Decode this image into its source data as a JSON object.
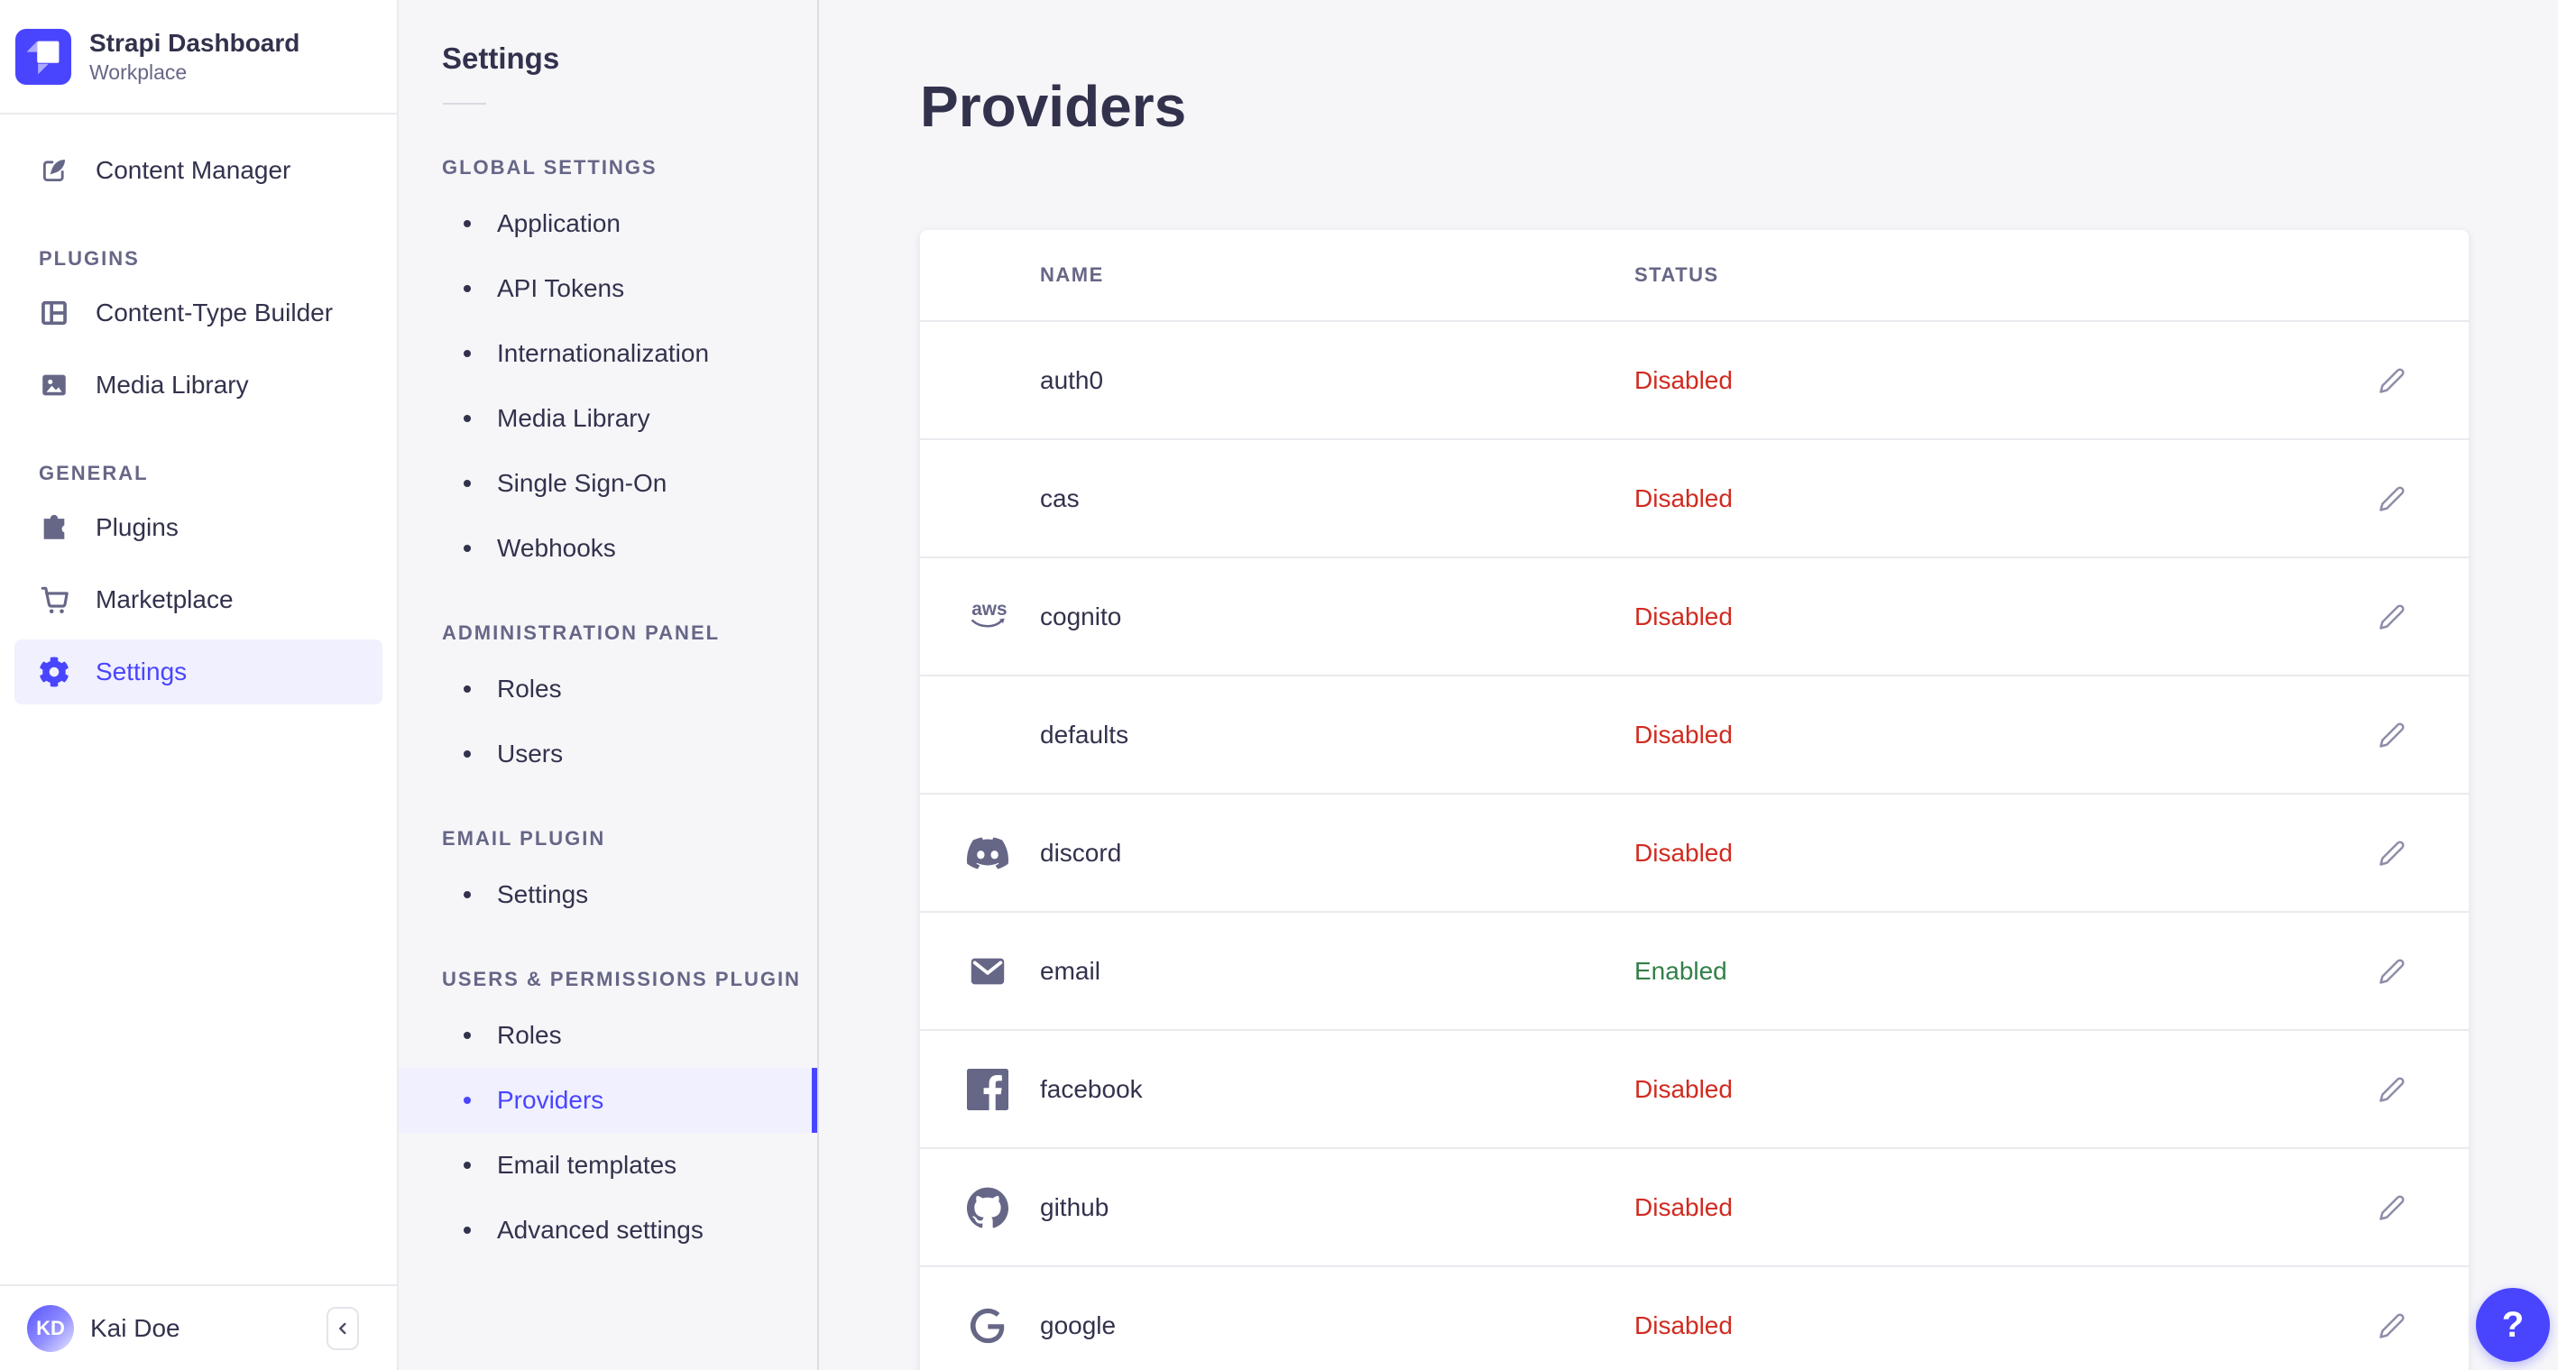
{
  "brand": {
    "name": "Strapi Dashboard",
    "workspace": "Workplace",
    "logo_icon": "strapi-logo-icon"
  },
  "main_nav": {
    "top_items": [
      {
        "label": "Content Manager",
        "icon": "pen-square-icon",
        "active": false
      }
    ],
    "sections": [
      {
        "label": "PLUGINS",
        "items": [
          {
            "label": "Content-Type Builder",
            "icon": "grid-icon",
            "active": false
          },
          {
            "label": "Media Library",
            "icon": "picture-icon",
            "active": false
          }
        ]
      },
      {
        "label": "GENERAL",
        "items": [
          {
            "label": "Plugins",
            "icon": "puzzle-icon",
            "active": false
          },
          {
            "label": "Marketplace",
            "icon": "cart-icon",
            "active": false
          },
          {
            "label": "Settings",
            "icon": "gear-icon",
            "active": true
          }
        ]
      }
    ]
  },
  "user": {
    "name": "Kai Doe",
    "initials": "KD"
  },
  "subnav": {
    "title": "Settings",
    "sections": [
      {
        "label": "GLOBAL SETTINGS",
        "items": [
          {
            "label": "Application",
            "active": false
          },
          {
            "label": "API Tokens",
            "active": false
          },
          {
            "label": "Internationalization",
            "active": false
          },
          {
            "label": "Media Library",
            "active": false
          },
          {
            "label": "Single Sign-On",
            "active": false
          },
          {
            "label": "Webhooks",
            "active": false
          }
        ]
      },
      {
        "label": "ADMINISTRATION PANEL",
        "items": [
          {
            "label": "Roles",
            "active": false
          },
          {
            "label": "Users",
            "active": false
          }
        ]
      },
      {
        "label": "EMAIL PLUGIN",
        "items": [
          {
            "label": "Settings",
            "active": false
          }
        ]
      },
      {
        "label": "USERS & PERMISSIONS PLUGIN",
        "items": [
          {
            "label": "Roles",
            "active": false
          },
          {
            "label": "Providers",
            "active": true
          },
          {
            "label": "Email templates",
            "active": false
          },
          {
            "label": "Advanced settings",
            "active": false
          }
        ]
      }
    ]
  },
  "page": {
    "title": "Providers"
  },
  "table": {
    "headers": [
      "NAME",
      "STATUS"
    ],
    "rows": [
      {
        "name": "auth0",
        "icon": null,
        "status": "Disabled"
      },
      {
        "name": "cas",
        "icon": null,
        "status": "Disabled"
      },
      {
        "name": "cognito",
        "icon": "aws-icon",
        "status": "Disabled"
      },
      {
        "name": "defaults",
        "icon": null,
        "status": "Disabled"
      },
      {
        "name": "discord",
        "icon": "discord-icon",
        "status": "Disabled"
      },
      {
        "name": "email",
        "icon": "envelope-icon",
        "status": "Enabled"
      },
      {
        "name": "facebook",
        "icon": "facebook-icon",
        "status": "Disabled"
      },
      {
        "name": "github",
        "icon": "github-icon",
        "status": "Disabled"
      },
      {
        "name": "google",
        "icon": "google-icon",
        "status": "Disabled"
      }
    ]
  },
  "help": {
    "label": "?"
  },
  "colors": {
    "accent": "#4945ff",
    "accent_bg": "#f0f0ff",
    "enabled": "#328048",
    "disabled": "#d02b20",
    "icon_gray": "#666687"
  }
}
